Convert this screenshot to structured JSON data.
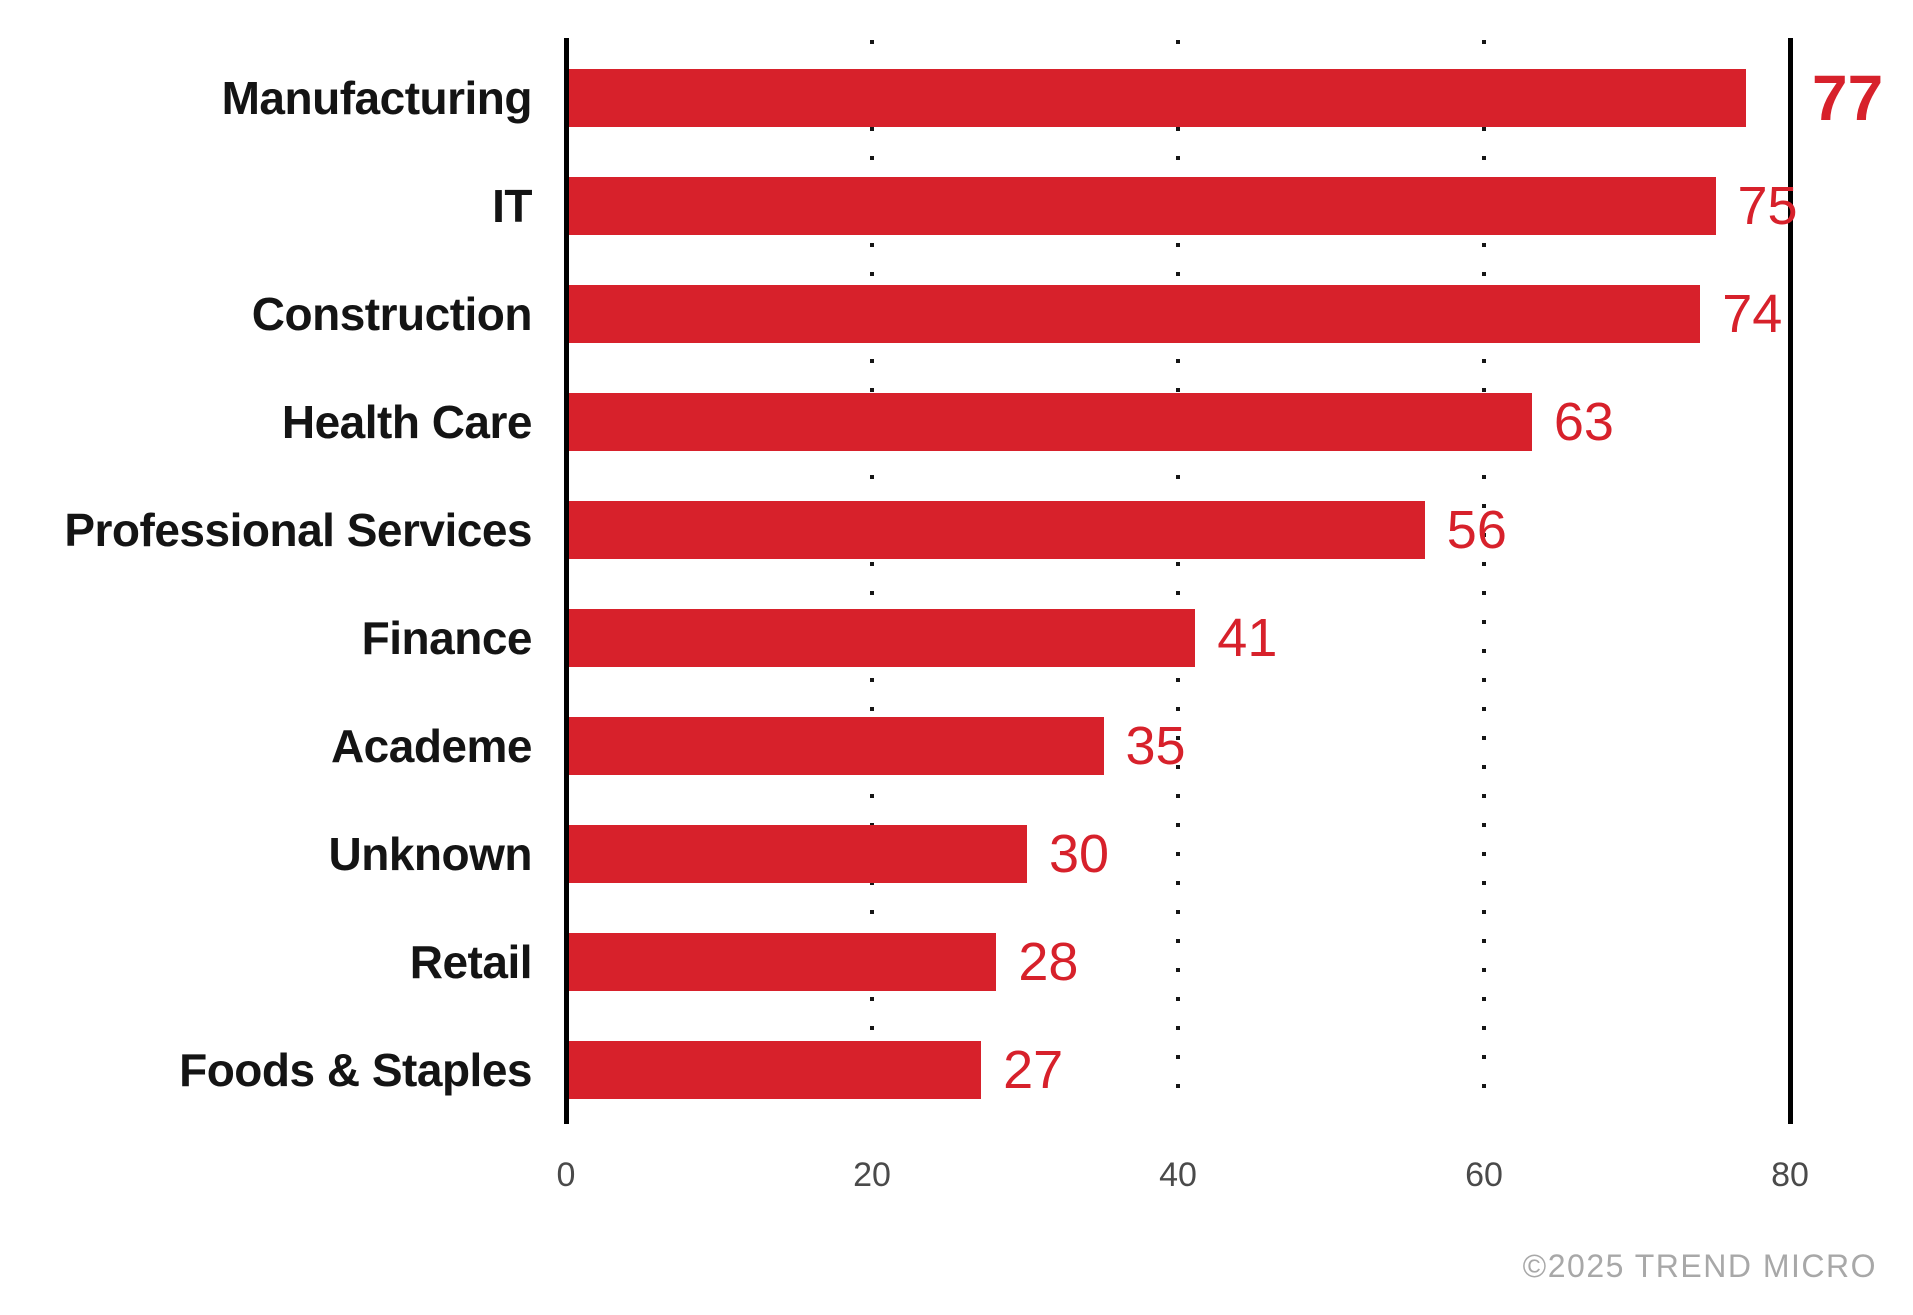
{
  "chart_data": {
    "type": "bar",
    "orientation": "horizontal",
    "title": "",
    "xlabel": "",
    "ylabel": "",
    "categories": [
      "Manufacturing",
      "IT",
      "Construction",
      "Health Care",
      "Professional Services",
      "Finance",
      "Academe",
      "Unknown",
      "Retail",
      "Foods & Staples"
    ],
    "values": [
      77,
      75,
      74,
      63,
      56,
      41,
      35,
      30,
      28,
      27
    ],
    "highlight_index": 0,
    "xlim": [
      0,
      80
    ],
    "xticks": [
      0,
      20,
      40,
      60,
      80
    ],
    "gridlines": [
      20,
      40,
      60
    ],
    "grid_style": "dotted",
    "legend": null
  },
  "colors": {
    "bar": "#d7212b",
    "value_label": "#d7212b",
    "category_label": "#141414",
    "axis": "#000000",
    "gridline": "#161616",
    "tick_label": "#4a4a4a",
    "copyright": "#a8a8a8",
    "background": "#ffffff"
  },
  "footer": {
    "copyright": "©2025 TREND MICRO"
  }
}
